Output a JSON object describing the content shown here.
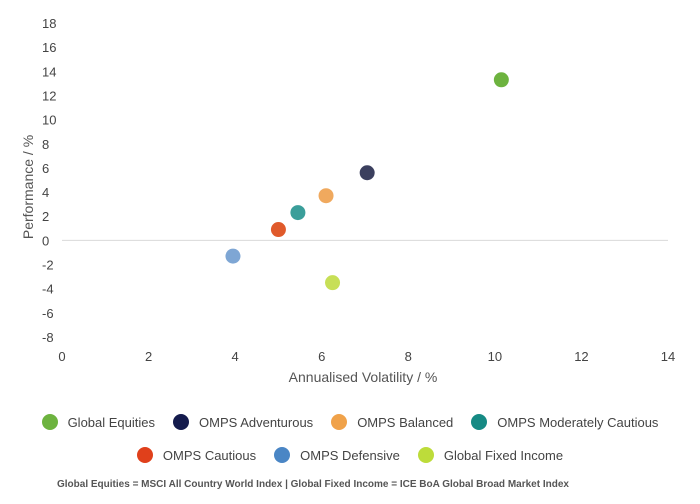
{
  "chart_data": {
    "type": "scatter",
    "xlabel": "Annualised Volatility / %",
    "ylabel": "Performance / %",
    "xlim": [
      0,
      14
    ],
    "ylim": [
      -8,
      18
    ],
    "x_ticks": [
      0,
      2,
      4,
      6,
      8,
      10,
      12,
      14
    ],
    "y_ticks": [
      18,
      16,
      14,
      12,
      10,
      8,
      6,
      4,
      2,
      0,
      -2,
      -4,
      -6,
      -8
    ],
    "grid": false,
    "legend_position": "bottom",
    "series": [
      {
        "name": "Global Equities",
        "color": "#6db33f",
        "points": [
          {
            "x": 10.15,
            "y": 13.3
          }
        ]
      },
      {
        "name": "OMPS Adventurous",
        "color": "#3b3f5e",
        "points": [
          {
            "x": 7.05,
            "y": 5.6
          }
        ]
      },
      {
        "name": "OMPS Balanced",
        "color": "#f0a95e",
        "points": [
          {
            "x": 6.1,
            "y": 3.7
          }
        ]
      },
      {
        "name": "OMPS Moderately Cautious",
        "color": "#3a9e9a",
        "points": [
          {
            "x": 5.45,
            "y": 2.3
          }
        ]
      },
      {
        "name": "OMPS Cautious",
        "color": "#e05a2b",
        "points": [
          {
            "x": 5.0,
            "y": 0.9
          }
        ]
      },
      {
        "name": "OMPS Defensive",
        "color": "#7ea6d4",
        "points": [
          {
            "x": 3.95,
            "y": -1.3
          }
        ]
      },
      {
        "name": "Global Fixed Income",
        "color": "#c7df56",
        "points": [
          {
            "x": 6.25,
            "y": -3.5
          }
        ]
      }
    ]
  },
  "legend": {
    "row1": [
      {
        "label": "Global Equities",
        "color": "#6db33f"
      },
      {
        "label": "OMPS Adventurous",
        "color": "#141b4d"
      },
      {
        "label": "OMPS Balanced",
        "color": "#f0a24a"
      },
      {
        "label": "OMPS Moderately Cautious",
        "color": "#168a84"
      }
    ],
    "row2": [
      {
        "label": "OMPS Cautious",
        "color": "#e0401b"
      },
      {
        "label": "OMPS Defensive",
        "color": "#4a86c5"
      },
      {
        "label": "Global Fixed Income",
        "color": "#bddc3a"
      }
    ]
  },
  "footnote": "Global Equities = MSCI All Country World Index | Global Fixed Income = ICE BoA Global Broad Market Index"
}
